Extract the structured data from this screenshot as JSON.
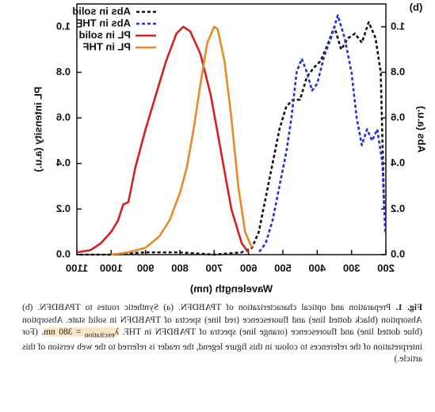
{
  "chart_data": {
    "type": "line",
    "panel_label": "(b)",
    "x_label": "Wavelength (nm)",
    "y_label": "Abs (a.u.)",
    "y2_label": "PL intensity (a.u.)",
    "xlim": [
      200,
      1100
    ],
    "xticks": [
      200,
      300,
      400,
      500,
      600,
      700,
      800,
      900,
      1000,
      1100
    ],
    "ylim": [
      0,
      1.1
    ],
    "yticks": [
      {
        "value": 0,
        "label": "0.0"
      },
      0.2,
      0.4,
      0.6,
      0.8,
      {
        "value": 1,
        "label": "1.0"
      }
    ],
    "y2lim": [
      0,
      1.1
    ],
    "y2ticks": [
      {
        "value": 0,
        "label": "0.0"
      },
      0.2,
      0.4,
      0.6,
      0.8,
      {
        "value": 1,
        "label": "1.0"
      }
    ],
    "legend": "top-right",
    "series": [
      {
        "name": "Abs in solid",
        "color": "#111111",
        "style": "dotted",
        "x": [
          205,
          215,
          230,
          250,
          270,
          290,
          310,
          330,
          350,
          370,
          390,
          410,
          430,
          450,
          470,
          490,
          510,
          530,
          550,
          570,
          590,
          620,
          700,
          800,
          900,
          1000,
          1100
        ],
        "values": [
          0.2,
          0.8,
          0.95,
          1.02,
          0.93,
          0.97,
          0.95,
          0.9,
          1.0,
          0.92,
          0.85,
          0.82,
          0.78,
          0.68,
          0.68,
          0.65,
          0.55,
          0.4,
          0.25,
          0.1,
          0.03,
          0.01,
          0,
          0.01,
          0.01,
          0,
          0
        ]
      },
      {
        "name": "Abs in THF",
        "color": "#1f2fe0",
        "style": "dotted",
        "x": [
          202,
          210,
          225,
          240,
          255,
          270,
          285,
          300,
          320,
          340,
          360,
          380,
          400,
          415,
          430,
          445,
          460,
          475,
          490,
          510,
          530,
          550,
          570
        ],
        "values": [
          0.1,
          0.4,
          0.55,
          0.5,
          0.55,
          0.48,
          0.6,
          0.8,
          0.95,
          1.05,
          0.95,
          0.87,
          0.75,
          0.72,
          0.8,
          0.86,
          0.8,
          0.6,
          0.45,
          0.3,
          0.15,
          0.05,
          0.01
        ]
      },
      {
        "name": "PL in solid",
        "color": "#d62020",
        "style": "solid",
        "axis": "y2",
        "x": [
          600,
          620,
          650,
          680,
          710,
          740,
          770,
          790,
          810,
          840,
          870,
          900,
          930,
          950,
          965,
          980,
          1000,
          1030,
          1060,
          1100
        ],
        "values": [
          0.01,
          0.05,
          0.2,
          0.45,
          0.7,
          0.88,
          0.98,
          1.0,
          0.97,
          0.85,
          0.7,
          0.55,
          0.38,
          0.23,
          0.22,
          0.15,
          0.1,
          0.05,
          0.02,
          0.01
        ]
      },
      {
        "name": "PL in THF",
        "color": "#e8892a",
        "style": "solid",
        "axis": "y2",
        "x": [
          590,
          610,
          630,
          650,
          670,
          690,
          700,
          720,
          740,
          760,
          780,
          800,
          830,
          860,
          900,
          950,
          1000
        ],
        "values": [
          0.03,
          0.1,
          0.3,
          0.6,
          0.85,
          0.99,
          1.0,
          0.93,
          0.75,
          0.55,
          0.38,
          0.27,
          0.15,
          0.08,
          0.03,
          0.01,
          0
        ]
      }
    ]
  },
  "caption": {
    "label": "Fig. 1.",
    "text": "Preparation and optical characterization of TPABDFN. (a) Synthetic routes to TPABDFN. (b) Absorption (black dotted line) and fluorescence (red line) spectra of TPABDFN in solid state. Absorption (blue dotted line) and fluorescence (orange line) spectra of TPABDFN in THF.",
    "symbol": "λ",
    "subscript": "excitation",
    "condition": "= 380 nm",
    "note": ". (For interpretation of the references to colour in this figure legend, the reader is referred to the web version of this article.)"
  }
}
